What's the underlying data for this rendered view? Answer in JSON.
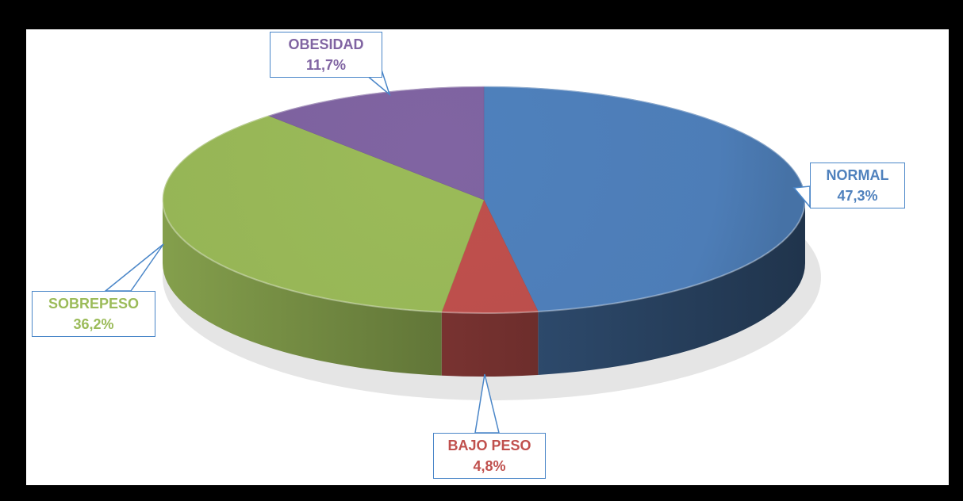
{
  "chart_data": {
    "type": "pie",
    "title": "",
    "slices": [
      {
        "label": "NORMAL",
        "value": 47.3,
        "display": "47,3%",
        "color": "#4f81bd"
      },
      {
        "label": "BAJO PESO",
        "value": 4.8,
        "display": "4,8%",
        "color": "#c0504d"
      },
      {
        "label": "SOBREPESO",
        "value": 36.2,
        "display": "36,2%",
        "color": "#9bbb59"
      },
      {
        "label": "OBESIDAD",
        "value": 11.7,
        "display": "11,7%",
        "color": "#8064a2"
      }
    ],
    "style": "3d",
    "legend": "none",
    "callout_border_color": "#4a86c8"
  }
}
